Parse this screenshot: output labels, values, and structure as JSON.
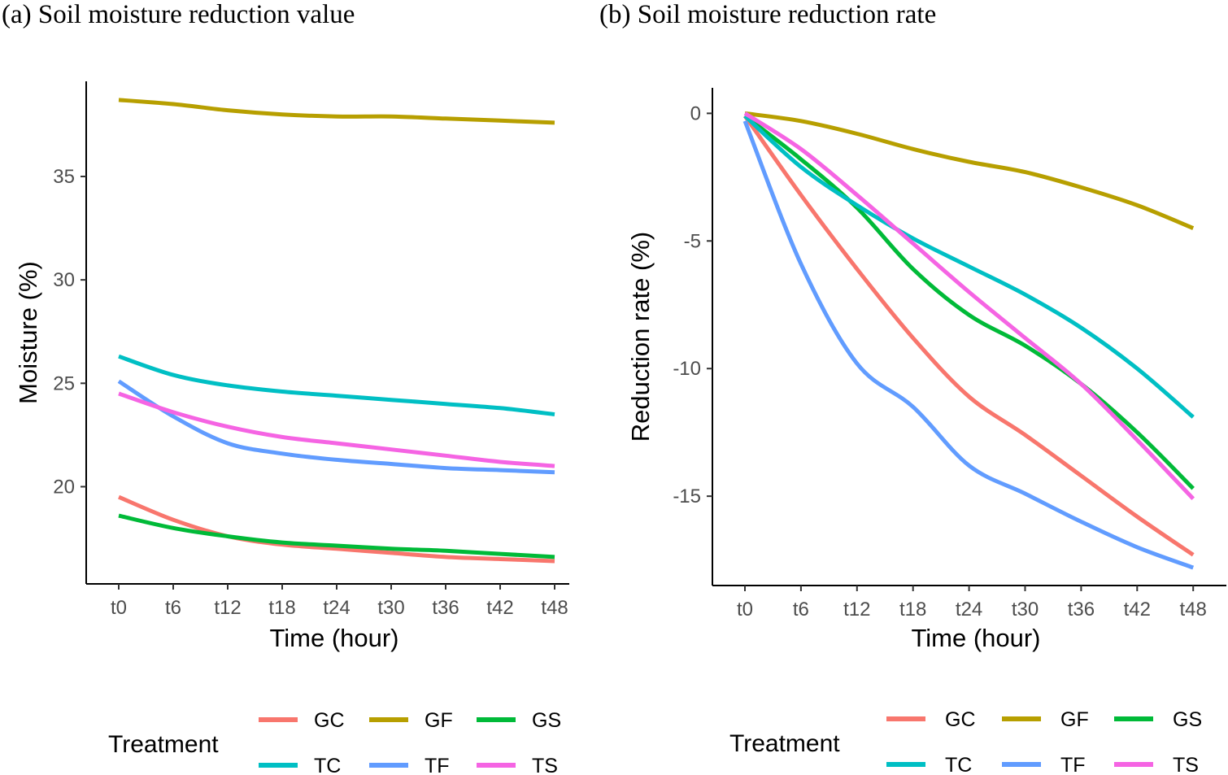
{
  "chart_data": [
    {
      "type": "line",
      "title": "(a) Soil moisture reduction value",
      "xlabel": "Time (hour)",
      "ylabel": "Moisture (%)",
      "categories": [
        "t0",
        "t6",
        "t12",
        "t18",
        "t24",
        "t30",
        "t36",
        "t42",
        "t48"
      ],
      "yticks": [
        20,
        25,
        30,
        35
      ],
      "ylim": [
        15.3,
        39.6
      ],
      "grid": false,
      "legend_position": "bottom",
      "legend_title": "Treatment",
      "series": [
        {
          "name": "GC",
          "color": "#F8766D",
          "values": [
            19.5,
            18.4,
            17.6,
            17.2,
            17.0,
            16.8,
            16.6,
            16.5,
            16.4
          ]
        },
        {
          "name": "GF",
          "color": "#B79F00",
          "values": [
            38.7,
            38.5,
            38.2,
            38.0,
            37.9,
            37.9,
            37.8,
            37.7,
            37.6
          ]
        },
        {
          "name": "GS",
          "color": "#00BA38",
          "values": [
            18.6,
            18.0,
            17.6,
            17.3,
            17.15,
            17.0,
            16.9,
            16.75,
            16.6
          ]
        },
        {
          "name": "TC",
          "color": "#00BFC4",
          "values": [
            26.3,
            25.4,
            24.9,
            24.6,
            24.4,
            24.2,
            24.0,
            23.8,
            23.5
          ]
        },
        {
          "name": "TF",
          "color": "#619CFF",
          "values": [
            25.1,
            23.4,
            22.1,
            21.6,
            21.3,
            21.1,
            20.9,
            20.8,
            20.7
          ]
        },
        {
          "name": "TS",
          "color": "#F564E3",
          "values": [
            24.5,
            23.6,
            22.9,
            22.4,
            22.1,
            21.8,
            21.5,
            21.2,
            21.0
          ]
        }
      ]
    },
    {
      "type": "line",
      "title": "(b) Soil moisture reduction rate",
      "xlabel": "Time (hour)",
      "ylabel": "Reduction rate (%)",
      "categories": [
        "t0",
        "t6",
        "t12",
        "t18",
        "t24",
        "t30",
        "t36",
        "t42",
        "t48"
      ],
      "yticks": [
        0,
        -5,
        -10,
        -15
      ],
      "ylim": [
        -18.5,
        1.0
      ],
      "grid": false,
      "legend_position": "bottom",
      "legend_title": "Treatment",
      "series": [
        {
          "name": "GC",
          "color": "#F8766D",
          "values": [
            -0.1,
            -3.2,
            -6.1,
            -8.8,
            -11.1,
            -12.6,
            -14.2,
            -15.8,
            -17.3
          ]
        },
        {
          "name": "GF",
          "color": "#B79F00",
          "values": [
            0.0,
            -0.3,
            -0.8,
            -1.4,
            -1.9,
            -2.3,
            -2.9,
            -3.6,
            -4.5
          ]
        },
        {
          "name": "GS",
          "color": "#00BA38",
          "values": [
            -0.1,
            -1.8,
            -3.7,
            -6.1,
            -7.9,
            -9.1,
            -10.6,
            -12.5,
            -14.7
          ]
        },
        {
          "name": "TC",
          "color": "#00BFC4",
          "values": [
            -0.1,
            -2.1,
            -3.6,
            -4.9,
            -6.0,
            -7.1,
            -8.4,
            -10.0,
            -11.9
          ]
        },
        {
          "name": "TF",
          "color": "#619CFF",
          "values": [
            -0.3,
            -5.9,
            -9.8,
            -11.5,
            -13.8,
            -14.9,
            -16.0,
            -17.0,
            -17.8
          ]
        },
        {
          "name": "TS",
          "color": "#F564E3",
          "values": [
            0.0,
            -1.4,
            -3.2,
            -5.1,
            -7.0,
            -8.8,
            -10.6,
            -12.8,
            -15.1
          ]
        }
      ]
    }
  ]
}
